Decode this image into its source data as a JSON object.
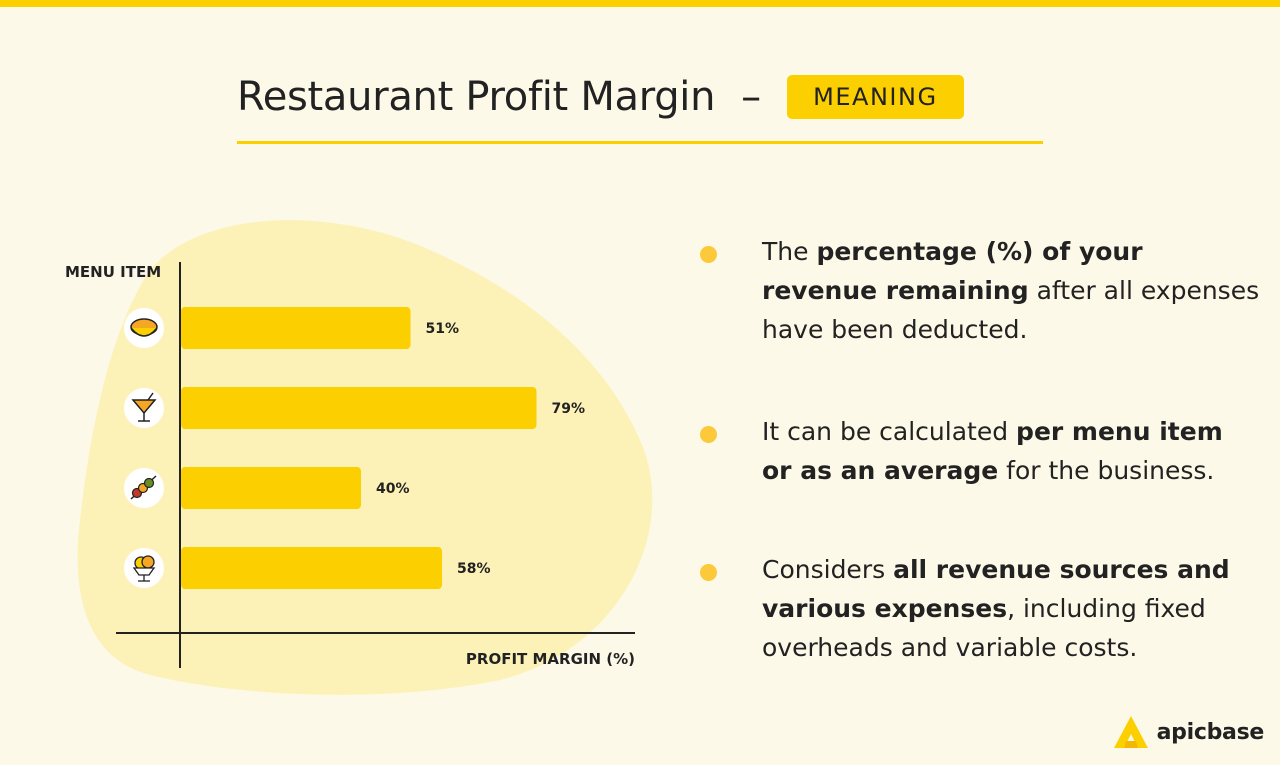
{
  "header": {
    "title": "Restaurant Profit Margin",
    "dash": "–",
    "badge": "MEANING"
  },
  "chart_data": {
    "type": "bar",
    "orientation": "horizontal",
    "categories": [
      "soup",
      "cocktail",
      "skewer",
      "ice-cream"
    ],
    "category_icons": [
      "soup-bowl-icon",
      "cocktail-glass-icon",
      "skewer-icon",
      "ice-cream-sundae-icon"
    ],
    "values": [
      51,
      79,
      40,
      58
    ],
    "value_labels": [
      "51%",
      "79%",
      "40%",
      "58%"
    ],
    "xlabel": "PROFIT MARGIN (%)",
    "ylabel": "MENU ITEM",
    "xlim": [
      0,
      100
    ],
    "grid": false,
    "bar_color": "#fcd000",
    "blob_color": "#fcf2b8"
  },
  "bullets": [
    {
      "parts": [
        {
          "text": "The ",
          "bold": false
        },
        {
          "text": "percentage (%) of your revenue remaining",
          "bold": true
        },
        {
          "text": " after all expenses have been deducted.",
          "bold": false
        }
      ]
    },
    {
      "parts": [
        {
          "text": "It can be calculated ",
          "bold": false
        },
        {
          "text": "per menu item or as an average",
          "bold": true
        },
        {
          "text": " for the business.",
          "bold": false
        }
      ]
    },
    {
      "parts": [
        {
          "text": "Considers ",
          "bold": false
        },
        {
          "text": "all revenue sources and various expenses",
          "bold": true
        },
        {
          "text": ", including fixed overheads and variable costs.",
          "bold": false
        }
      ]
    }
  ],
  "brand": {
    "name": "apicbase",
    "logo_icon": "apicbase-logo-icon",
    "logo_color": "#fcd000"
  }
}
